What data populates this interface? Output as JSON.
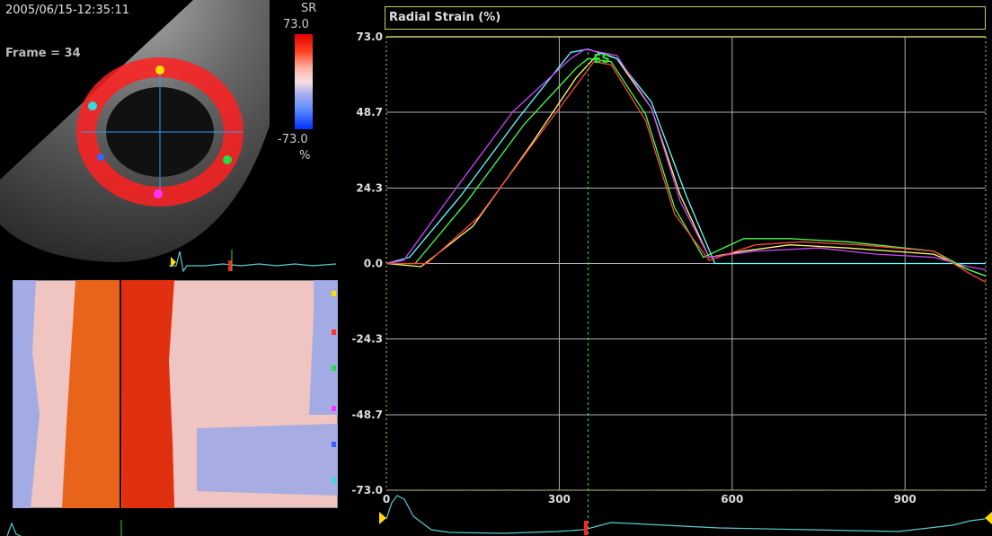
{
  "timestamp": "2005/06/15-12:35:11",
  "frame_label": "Frame = 34",
  "legend": {
    "title": "SR",
    "max": "73.0",
    "min": "-73.0",
    "unit": "%"
  },
  "chart_data": {
    "type": "line",
    "title": "Radial Strain (%)",
    "ylim": [
      -73,
      73
    ],
    "xlim": [
      0,
      1040
    ],
    "yticks": [
      73.0,
      48.7,
      24.3,
      0.0,
      -24.3,
      -48.7,
      -73.0
    ],
    "ytick_labels": [
      "73.0",
      "48.7",
      "24.3",
      "0.0",
      "-24.3",
      "-48.7",
      "-73.0"
    ],
    "xticks": [
      0,
      300,
      600,
      900
    ],
    "xtick_labels": [
      "0",
      "300",
      "600",
      "900"
    ],
    "grid": true,
    "marker": {
      "label": "ES",
      "x": 350
    },
    "series": [
      {
        "color": "#ffff66",
        "x": [
          0,
          60,
          150,
          250,
          330,
          370,
          400,
          460,
          510,
          560,
          620,
          700,
          800,
          950,
          1010,
          1040
        ],
        "y": [
          0,
          -1,
          12,
          38,
          60,
          68,
          66,
          50,
          22,
          2,
          4,
          6,
          5,
          3,
          -2,
          -4
        ]
      },
      {
        "color": "#66ffff",
        "x": [
          0,
          40,
          130,
          230,
          320,
          350,
          400,
          460,
          520,
          570,
          650,
          750,
          850,
          950,
          1010,
          1040
        ],
        "y": [
          0,
          2,
          22,
          47,
          68,
          69,
          66,
          52,
          22,
          0,
          0,
          0,
          0,
          0,
          0,
          0
        ]
      },
      {
        "color": "#cc44ff",
        "x": [
          0,
          30,
          120,
          220,
          320,
          345,
          400,
          460,
          510,
          560,
          640,
          750,
          850,
          950,
          1010,
          1040
        ],
        "y": [
          0,
          1,
          24,
          49,
          66,
          69,
          67,
          50,
          20,
          2,
          4,
          5,
          3,
          2,
          -1,
          -2
        ]
      },
      {
        "color": "#44ff44",
        "x": [
          0,
          50,
          140,
          240,
          330,
          350,
          390,
          450,
          500,
          550,
          620,
          700,
          800,
          950,
          1010,
          1040
        ],
        "y": [
          0,
          0,
          20,
          45,
          63,
          66,
          65,
          48,
          18,
          2,
          8,
          8,
          7,
          4,
          -2,
          -4
        ]
      },
      {
        "color": "#ff4444",
        "x": [
          0,
          70,
          160,
          260,
          340,
          360,
          390,
          450,
          500,
          560,
          640,
          720,
          820,
          950,
          1010,
          1040
        ],
        "y": [
          0,
          0,
          15,
          40,
          60,
          65,
          64,
          46,
          16,
          1,
          6,
          7,
          6,
          4,
          -3,
          -6
        ]
      }
    ]
  },
  "colors": {
    "grid": "#b0b0b0",
    "axis": "#cccc66",
    "es_line": "#33dd33",
    "ecg": "#55cccc",
    "es_marker": "#ff2222"
  }
}
